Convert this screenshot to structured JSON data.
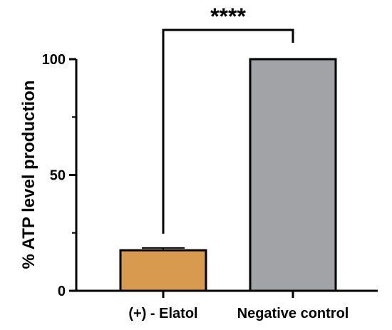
{
  "chart_data": {
    "type": "bar",
    "title": "",
    "xlabel": "",
    "ylabel": "% ATP level production",
    "categories": [
      "(+) - Elatol",
      "Negative control"
    ],
    "values": [
      17.5,
      100
    ],
    "error_bars": [
      1.0,
      0
    ],
    "ylim": [
      0,
      100
    ],
    "yticks": [
      0,
      50,
      100
    ],
    "ytick_labels": [
      "0",
      "50",
      "100"
    ],
    "bar_colors": [
      "#D89A4E",
      "#A2A3A7"
    ],
    "significance": {
      "between": [
        "(+) - Elatol",
        "Negative control"
      ],
      "label": "****"
    },
    "grid": false,
    "legend": "none"
  }
}
